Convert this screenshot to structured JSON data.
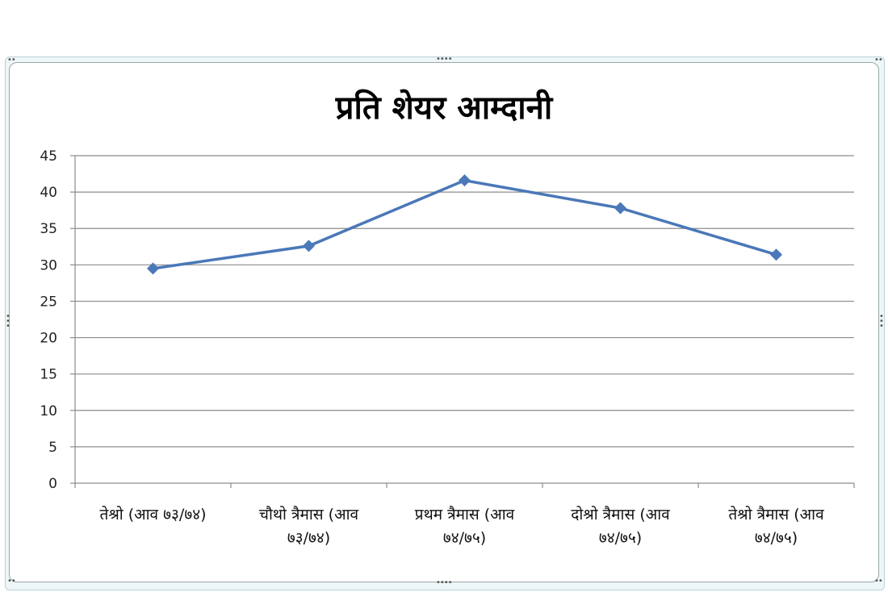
{
  "chart_data": {
    "type": "line",
    "title": "प्रति शेयर आम्दानी",
    "xlabel": "",
    "ylabel": "",
    "ylim": [
      0,
      45
    ],
    "yticks": [
      0,
      5,
      10,
      15,
      20,
      25,
      30,
      35,
      40,
      45
    ],
    "grid": true,
    "legend": "none",
    "categories": [
      "तेश्रो (आव ७३/७४)",
      "चौथो त्रैमास (आव ७३/७४)",
      "प्रथम त्रैमास (आव ७४/७५)",
      "दोश्रो त्रैमास (आव ७४/७५)",
      "तेश्रो त्रैमास (आव ७४/७५)"
    ],
    "series": [
      {
        "name": "प्रति शेयर आम्दानी",
        "color": "#4a78b8",
        "values": [
          29.5,
          32.6,
          41.6,
          37.8,
          31.4
        ]
      }
    ]
  },
  "labels": {
    "title": "प्रति शेयर आम्दानी",
    "x": [
      {
        "line1": "तेश्रो (आव ७३/७४)",
        "line2": ""
      },
      {
        "line1": "चौथो त्रैमास (आव",
        "line2": "७३/७४)"
      },
      {
        "line1": "प्रथम त्रैमास (आव",
        "line2": "७४/७५)"
      },
      {
        "line1": "दोश्रो त्रैमास (आव",
        "line2": "७४/७५)"
      },
      {
        "line1": "तेश्रो त्रैमास (आव",
        "line2": "७४/७५)"
      }
    ],
    "y": [
      "0",
      "5",
      "10",
      "15",
      "20",
      "25",
      "30",
      "35",
      "40",
      "45"
    ]
  }
}
